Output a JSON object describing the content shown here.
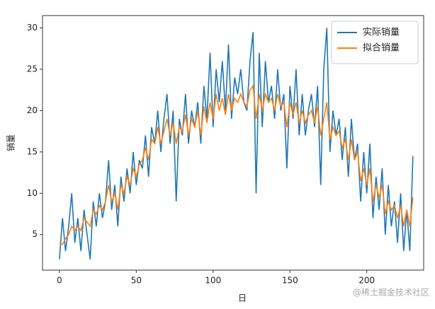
{
  "chart_data": {
    "type": "line",
    "xlabel": "日",
    "ylabel": "销量",
    "x": [
      0,
      2,
      4,
      6,
      8,
      10,
      12,
      14,
      16,
      18,
      20,
      22,
      24,
      26,
      28,
      30,
      32,
      34,
      36,
      38,
      40,
      42,
      44,
      46,
      48,
      50,
      52,
      54,
      56,
      58,
      60,
      62,
      64,
      66,
      68,
      70,
      72,
      74,
      76,
      78,
      80,
      82,
      84,
      86,
      88,
      90,
      92,
      94,
      96,
      98,
      100,
      102,
      104,
      106,
      108,
      110,
      112,
      114,
      116,
      118,
      120,
      122,
      124,
      126,
      128,
      130,
      132,
      134,
      136,
      138,
      140,
      142,
      144,
      146,
      148,
      150,
      152,
      154,
      156,
      158,
      160,
      162,
      164,
      166,
      168,
      170,
      172,
      174,
      176,
      178,
      180,
      182,
      184,
      186,
      188,
      190,
      192,
      194,
      196,
      198,
      200,
      202,
      204,
      206,
      208,
      210,
      212,
      214,
      216,
      218,
      220,
      222,
      224,
      226,
      228,
      230
    ],
    "series": [
      {
        "name": "实际销量",
        "color": "#1f77b4",
        "values": [
          2,
          7,
          3,
          6,
          10,
          4,
          7,
          3,
          8,
          5,
          2,
          9,
          6,
          10,
          7,
          9,
          14,
          8,
          11,
          6,
          12,
          9,
          13,
          10,
          15,
          11,
          14,
          13,
          17,
          12,
          18,
          16,
          20,
          15,
          19,
          22,
          16,
          20,
          9,
          19,
          17,
          22,
          16,
          20,
          18,
          21,
          16,
          23,
          19,
          27,
          18,
          25,
          21,
          26,
          20,
          28,
          19,
          24,
          22,
          25,
          21,
          20,
          26,
          29.5,
          10,
          27,
          18,
          26,
          21,
          23,
          19,
          25,
          20,
          22,
          13,
          23,
          19,
          25,
          17,
          22,
          17,
          20,
          22,
          18,
          23,
          11,
          25,
          30,
          15,
          20,
          17,
          19,
          14,
          18,
          12,
          19,
          14,
          16,
          9,
          15,
          10,
          16,
          7,
          12,
          8,
          13,
          5,
          11,
          6,
          9,
          4,
          10,
          3,
          8,
          3,
          14.5
        ]
      },
      {
        "name": "拟合销量",
        "color": "#ff7f0e",
        "values": [
          4,
          3.8,
          4.5,
          5,
          6,
          5.5,
          6,
          5.5,
          7,
          6.5,
          6,
          8,
          7.5,
          8.5,
          8,
          9,
          11,
          9,
          10,
          8,
          11,
          10,
          12,
          11,
          13,
          12,
          13.5,
          14,
          15.5,
          14,
          16.5,
          16,
          18,
          16,
          17.5,
          19,
          17,
          18.5,
          16,
          18,
          17.5,
          19.5,
          17,
          19,
          18,
          20,
          17,
          20.5,
          18.5,
          21,
          19,
          22,
          20,
          21.5,
          19.5,
          22,
          20,
          21.5,
          21,
          22,
          21,
          20.5,
          22.5,
          23,
          19,
          22,
          20,
          22,
          21,
          21.5,
          20,
          22,
          20.5,
          21,
          18,
          21,
          19.5,
          21,
          18.5,
          20,
          18.5,
          19.5,
          20,
          18.5,
          20.5,
          17,
          19,
          21,
          16.5,
          18,
          17,
          17.5,
          15.5,
          16.5,
          14,
          16.5,
          14,
          15,
          11.5,
          13,
          11,
          13,
          9,
          11,
          9.5,
          11,
          7.5,
          9,
          8,
          8.5,
          7,
          8.5,
          6,
          8,
          6,
          9.5
        ]
      }
    ],
    "xlim": [
      -11,
      237
    ],
    "ylim": [
      0.7,
      31.5
    ],
    "xticks": [
      0,
      50,
      100,
      150,
      200
    ],
    "yticks": [
      5,
      10,
      15,
      20,
      25,
      30
    ],
    "legend": "upper right",
    "watermark": "@稀土掘金技术社区"
  }
}
